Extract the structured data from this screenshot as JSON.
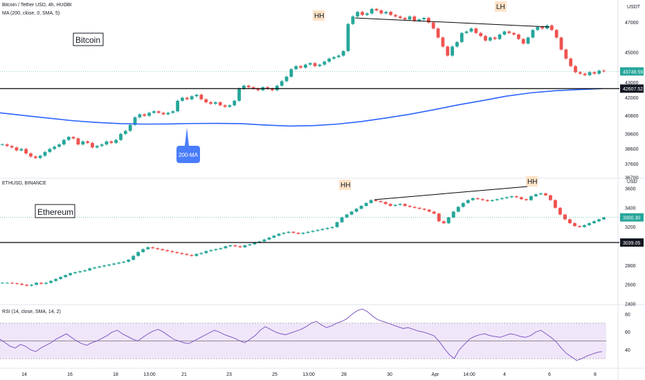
{
  "chart_data": [
    {
      "type": "candlestick",
      "title": "Bitcoin / Tether USD, 4h, HUOBI",
      "indicator": "MA (200, close, 0, SMA, 5)",
      "label": "Bitcoin",
      "currency": "USDT",
      "ylim": [
        36700,
        48400
      ],
      "y_ticks": [
        47000,
        45000,
        43000,
        42000,
        40800,
        39600,
        38600,
        37600,
        36700
      ],
      "price_labels": {
        "last": "43748.59",
        "line": "42607.52"
      },
      "annotations": [
        "HH",
        "LH",
        "200-MA"
      ],
      "horizontal_line": 42607.52,
      "ma_200": [
        41000,
        40820,
        40650,
        40480,
        40360,
        40280,
        40250,
        40260,
        40290,
        40300,
        40280,
        40190,
        40120,
        40150,
        40250,
        40420,
        40650,
        40900,
        41200,
        41520,
        41800,
        42100,
        42320,
        42460,
        42540,
        42607
      ],
      "closes": [
        38900,
        38800,
        38700,
        38500,
        38600,
        38300,
        38100,
        38000,
        38150,
        38400,
        38600,
        38750,
        38900,
        39200,
        39400,
        39300,
        38900,
        39100,
        39000,
        38700,
        38800,
        38900,
        39100,
        39000,
        39200,
        39600,
        39800,
        40200,
        40700,
        40900,
        40800,
        41000,
        41100,
        41000,
        40900,
        41000,
        41100,
        41800,
        42000,
        41900,
        42100,
        42200,
        41900,
        41700,
        41600,
        41700,
        41500,
        41400,
        41500,
        41800,
        42600,
        42800,
        42700,
        42600,
        42500,
        42700,
        42600,
        42500,
        42800,
        43100,
        43400,
        43900,
        44100,
        44000,
        44200,
        44300,
        44100,
        44200,
        44400,
        44600,
        44700,
        44800,
        45100,
        46900,
        47400,
        47700,
        47500,
        47600,
        47900,
        47800,
        47600,
        47700,
        47500,
        47400,
        47300,
        47200,
        47400,
        47100,
        47200,
        47300,
        47000,
        46600,
        46000,
        45400,
        44800,
        45400,
        45700,
        46300,
        46400,
        46600,
        46300,
        46100,
        45800,
        46000,
        45900,
        46200,
        46400,
        46300,
        46200,
        45900,
        45600,
        46000,
        46500,
        46700,
        46600,
        46800,
        46500,
        46000,
        45200,
        44600,
        44100,
        43700,
        43600,
        43500,
        43700,
        43600,
        43800,
        43750
      ]
    },
    {
      "type": "candlestick",
      "title": "ETHUSD, BINANCE",
      "label": "Ethereum",
      "currency": "USD",
      "ylim": [
        2400,
        3700
      ],
      "y_ticks": [
        3600,
        3400,
        3200,
        3039.05,
        2800,
        2600,
        2400
      ],
      "price_labels": {
        "last": "3300.30",
        "line": "3039.05"
      },
      "annotations": [
        "HH",
        "HH"
      ],
      "horizontal_line": 3039.05,
      "closes": [
        2620,
        2620,
        2615,
        2610,
        2600,
        2590,
        2600,
        2620,
        2610,
        2620,
        2640,
        2660,
        2680,
        2700,
        2720,
        2730,
        2740,
        2750,
        2770,
        2780,
        2790,
        2800,
        2810,
        2820,
        2830,
        2840,
        2860,
        2900,
        2940,
        2970,
        2990,
        2980,
        2970,
        2960,
        2950,
        2940,
        2930,
        2920,
        2910,
        2900,
        2920,
        2930,
        2950,
        2960,
        2970,
        2980,
        3000,
        3010,
        3000,
        2990,
        3010,
        3020,
        3040,
        3050,
        3070,
        3090,
        3110,
        3130,
        3140,
        3150,
        3140,
        3130,
        3140,
        3150,
        3160,
        3170,
        3180,
        3190,
        3200,
        3250,
        3300,
        3330,
        3360,
        3390,
        3420,
        3450,
        3480,
        3470,
        3460,
        3440,
        3420,
        3430,
        3440,
        3420,
        3410,
        3400,
        3390,
        3380,
        3360,
        3340,
        3260,
        3240,
        3300,
        3360,
        3410,
        3450,
        3480,
        3500,
        3490,
        3480,
        3470,
        3480,
        3490,
        3500,
        3510,
        3520,
        3510,
        3490,
        3480,
        3520,
        3540,
        3550,
        3530,
        3480,
        3400,
        3330,
        3280,
        3240,
        3210,
        3200,
        3220,
        3240,
        3260,
        3280,
        3300
      ]
    },
    {
      "type": "line",
      "title": "RSI (14, close, SMA, 14, 2)",
      "ylim": [
        20,
        90
      ],
      "y_ticks": [
        80,
        60,
        40
      ],
      "band": [
        30,
        70
      ],
      "midline": 50,
      "values": [
        52,
        48,
        44,
        42,
        46,
        44,
        40,
        38,
        42,
        45,
        48,
        52,
        55,
        58,
        54,
        50,
        47,
        45,
        48,
        50,
        53,
        56,
        60,
        62,
        58,
        55,
        52,
        50,
        54,
        58,
        61,
        63,
        60,
        56,
        52,
        50,
        48,
        47,
        50,
        53,
        56,
        59,
        62,
        60,
        57,
        55,
        53,
        50,
        48,
        52,
        56,
        62,
        66,
        63,
        60,
        58,
        57,
        59,
        61,
        63,
        66,
        70,
        72,
        68,
        65,
        67,
        70,
        72,
        75,
        80,
        84,
        86,
        83,
        78,
        74,
        72,
        70,
        68,
        66,
        64,
        65,
        63,
        61,
        60,
        58,
        56,
        50,
        42,
        35,
        30,
        40,
        46,
        52,
        55,
        57,
        58,
        56,
        55,
        54,
        56,
        58,
        57,
        55,
        54,
        56,
        60,
        62,
        58,
        54,
        49,
        42,
        36,
        32,
        28,
        30,
        33,
        35,
        37,
        38
      ]
    }
  ],
  "x_axis_labels": [
    "14",
    "16",
    "18",
    "13:00",
    "21",
    "23",
    "25",
    "13:00",
    "28",
    "30",
    "Apr",
    "14:00",
    "4",
    "6",
    "8"
  ]
}
